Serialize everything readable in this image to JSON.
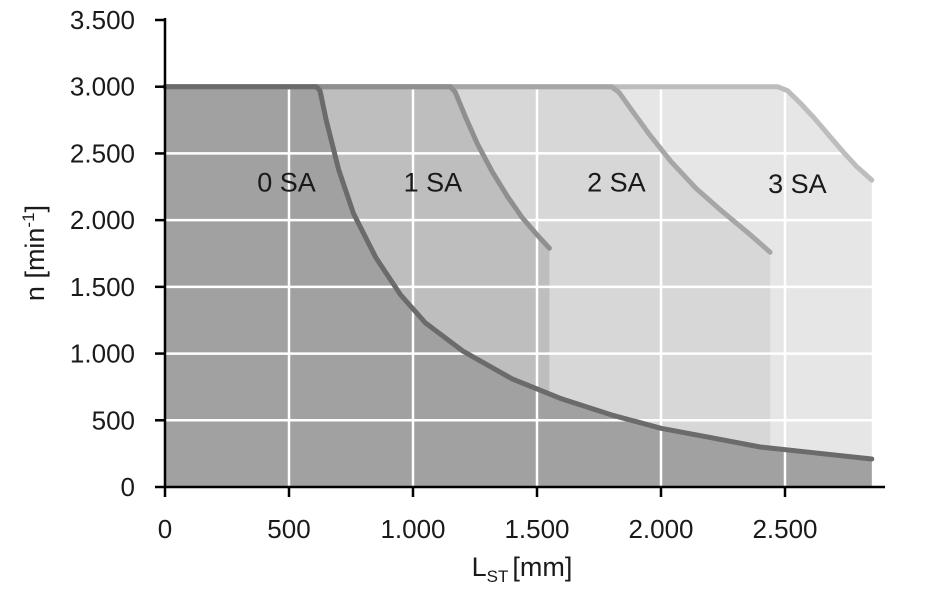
{
  "chart_data": {
    "type": "area",
    "title": "",
    "xlabel": {
      "main": "L",
      "sub": "ST",
      "unit": "[mm]"
    },
    "ylabel": {
      "main": "n [min",
      "sup": "-1",
      "close": "]"
    },
    "xlim": [
      0,
      2900
    ],
    "ylim": [
      0,
      3500
    ],
    "xticks": [
      0,
      500,
      1000,
      1500,
      2000,
      2500
    ],
    "xtick_labels": [
      "0",
      "500",
      "1.000",
      "1.500",
      "2.000",
      "2.500"
    ],
    "yticks": [
      0,
      500,
      1000,
      1500,
      2000,
      2500,
      3000,
      3500
    ],
    "ytick_labels": [
      "0",
      "500",
      "1.000",
      "1.500",
      "2.000",
      "2.500",
      "3.000",
      "3.500"
    ],
    "grid": true,
    "series": [
      {
        "name": "3 SA",
        "fill": "#e6e6e6",
        "line": "#bdbdbd",
        "x": [
          0,
          2470,
          2510,
          2560,
          2620,
          2680,
          2740,
          2790,
          2850
        ],
        "y": [
          3000,
          3000,
          2970,
          2880,
          2760,
          2630,
          2500,
          2400,
          2300
        ]
      },
      {
        "name": "2 SA",
        "fill": "#d7d7d7",
        "line": "#a6a6a6",
        "x": [
          0,
          1800,
          1830,
          1880,
          1950,
          2040,
          2140,
          2250,
          2360,
          2440
        ],
        "y": [
          3000,
          3000,
          2960,
          2830,
          2650,
          2440,
          2240,
          2060,
          1890,
          1760
        ]
      },
      {
        "name": "1 SA",
        "fill": "#bebebe",
        "line": "#8f8f8f",
        "x": [
          0,
          1150,
          1170,
          1210,
          1260,
          1320,
          1380,
          1440,
          1500,
          1550
        ],
        "y": [
          3000,
          3000,
          2960,
          2780,
          2570,
          2360,
          2180,
          2020,
          1890,
          1790
        ]
      },
      {
        "name": "0 SA",
        "fill": "#a1a1a1",
        "line": "#6b6b6b",
        "x": [
          0,
          610,
          625,
          650,
          700,
          760,
          850,
          950,
          1050,
          1200,
          1400,
          1600,
          1800,
          2000,
          2200,
          2400,
          2600,
          2850
        ],
        "y": [
          3000,
          3000,
          2970,
          2750,
          2380,
          2050,
          1720,
          1440,
          1230,
          1020,
          810,
          660,
          540,
          440,
          370,
          300,
          260,
          210
        ]
      }
    ],
    "labels": [
      {
        "text": "0 SA",
        "x": 490,
        "y": 2290
      },
      {
        "text": "1 SA",
        "x": 1080,
        "y": 2290
      },
      {
        "text": "2 SA",
        "x": 1820,
        "y": 2290
      },
      {
        "text": "3 SA",
        "x": 2550,
        "y": 2280
      }
    ]
  }
}
